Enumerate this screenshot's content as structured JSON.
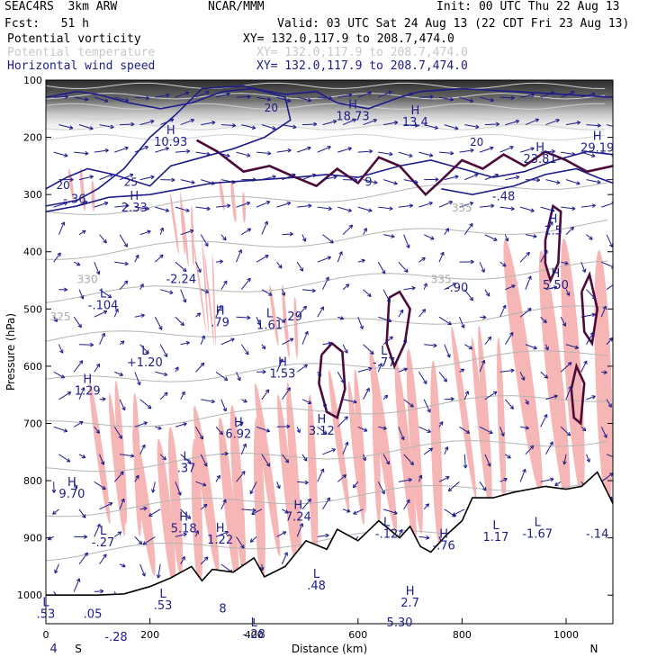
{
  "header": {
    "model": "SEAC4RS  3km ARW",
    "org": "NCAR/MMM",
    "init": "Init: 00 UTC Thu 22 Aug 13",
    "fcst": "Fcst:   51 h",
    "valid": "Valid: 03 UTC Sat 24 Aug 13 (22 CDT Fri 23 Aug 13)"
  },
  "fields": [
    {
      "name": "Potential vorticity",
      "xy": "XY= 132.0,117.9 to 208.7,474.0",
      "color": "#000000"
    },
    {
      "name": "Potential temperature",
      "xy": "XY= 132.0,117.9 to 208.7,474.0",
      "color": "#c8c8c8"
    },
    {
      "name": "Horizontal wind speed",
      "xy": "XY= 132.0,117.9 to 208.7,474.0",
      "color": "#1c1c8a"
    }
  ],
  "colors": {
    "wind": "#1c1c8a",
    "pv": "#4b0a3a",
    "theta": "#b4b4b4",
    "pv_fill": "#f7b6b6",
    "terrain": "#000000"
  },
  "chart_data": {
    "type": "cross-section",
    "xlabel": "Distance (km)",
    "ylabel": "Pressure (hPa)",
    "xlim": [
      0,
      1090
    ],
    "ylim": [
      1050,
      100
    ],
    "x_ticks": [
      "0",
      "200",
      "400",
      "600",
      "800",
      "1000"
    ],
    "y_ticks": [
      "100",
      "200",
      "300",
      "400",
      "500",
      "600",
      "700",
      "800",
      "900",
      "1000"
    ],
    "x_tick_values": [
      0,
      200,
      400,
      600,
      800,
      1000
    ],
    "y_tick_values": [
      100,
      200,
      300,
      400,
      500,
      600,
      700,
      800,
      900,
      1000
    ],
    "end_labels": {
      "left": "S",
      "right": "N"
    },
    "terrain_surface": [
      [
        0,
        1000
      ],
      [
        50,
        1000
      ],
      [
        100,
        1000
      ],
      [
        150,
        998
      ],
      [
        200,
        985
      ],
      [
        240,
        970
      ],
      [
        280,
        950
      ],
      [
        300,
        975
      ],
      [
        320,
        955
      ],
      [
        360,
        960
      ],
      [
        400,
        935
      ],
      [
        420,
        968
      ],
      [
        460,
        950
      ],
      [
        500,
        905
      ],
      [
        540,
        920
      ],
      [
        560,
        885
      ],
      [
        600,
        905
      ],
      [
        640,
        870
      ],
      [
        680,
        900
      ],
      [
        700,
        880
      ],
      [
        720,
        915
      ],
      [
        740,
        925
      ],
      [
        770,
        895
      ],
      [
        800,
        870
      ],
      [
        820,
        830
      ],
      [
        860,
        830
      ],
      [
        900,
        820
      ],
      [
        960,
        810
      ],
      [
        1000,
        815
      ],
      [
        1030,
        810
      ],
      [
        1060,
        785
      ],
      [
        1090,
        840
      ]
    ],
    "theta_contours": [
      {
        "label": "330",
        "x": 60,
        "p": 455
      },
      {
        "label": "325",
        "x": 8,
        "p": 520
      },
      {
        "label": "335",
        "x": 740,
        "p": 455
      },
      {
        "label": "335",
        "x": 780,
        "p": 330
      }
    ],
    "wind_contours": [
      {
        "label": "20",
        "x": 20,
        "p": 290
      },
      {
        "label": "25",
        "x": 150,
        "p": 285
      },
      {
        "label": "20",
        "x": 420,
        "p": 155
      },
      {
        "label": "20",
        "x": 815,
        "p": 215
      }
    ],
    "extrema": [
      {
        "type": "H",
        "value": "10.93",
        "x": 240,
        "p": 215
      },
      {
        "type": "H",
        "value": "18.73",
        "x": 590,
        "p": 170
      },
      {
        "type": "H",
        "value": "13.4",
        "x": 710,
        "p": 180
      },
      {
        "type": "H",
        "value": "23.81",
        "x": 950,
        "p": 245
      },
      {
        "type": "H",
        "value": "29.19",
        "x": 1060,
        "p": 225
      },
      {
        "type": "",
        "value": "-.36",
        "x": 55,
        "p": 315
      },
      {
        "type": "H",
        "value": "2.33",
        "x": 170,
        "p": 330
      },
      {
        "type": "",
        "value": "9",
        "x": 620,
        "p": 285
      },
      {
        "type": "",
        "value": "-.48",
        "x": 880,
        "p": 310
      },
      {
        "type": "",
        "value": "-2.24",
        "x": 260,
        "p": 455
      },
      {
        "type": "L",
        "value": "-.104",
        "x": 110,
        "p": 500
      },
      {
        "type": "H",
        "value": ".79",
        "x": 335,
        "p": 530
      },
      {
        "type": "L",
        "value": "1.61",
        "x": 430,
        "p": 535
      },
      {
        "type": "",
        "value": ".29",
        "x": 475,
        "p": 520
      },
      {
        "type": "",
        "value": "-.90",
        "x": 790,
        "p": 470
      },
      {
        "type": "H",
        "value": "1.5",
        "x": 975,
        "p": 370
      },
      {
        "type": "H",
        "value": "5.50",
        "x": 980,
        "p": 465
      },
      {
        "type": "L",
        "value": "+1.20",
        "x": 190,
        "p": 600
      },
      {
        "type": "H",
        "value": "1.53",
        "x": 455,
        "p": 620
      },
      {
        "type": "L",
        "value": "-.77",
        "x": 650,
        "p": 600
      },
      {
        "type": "H",
        "value": "1.29",
        "x": 80,
        "p": 650
      },
      {
        "type": "H",
        "value": "6.92",
        "x": 370,
        "p": 725
      },
      {
        "type": "H",
        "value": "3.12",
        "x": 530,
        "p": 720
      },
      {
        "type": "L",
        "value": ".37",
        "x": 270,
        "p": 785
      },
      {
        "type": "H",
        "value": "9.70",
        "x": 50,
        "p": 830
      },
      {
        "type": "H",
        "value": "7.24",
        "x": 485,
        "p": 870
      },
      {
        "type": "H",
        "value": "5.18",
        "x": 265,
        "p": 890
      },
      {
        "type": "L",
        "value": "-.27",
        "x": 110,
        "p": 915
      },
      {
        "type": "H",
        "value": "1.22",
        "x": 335,
        "p": 910
      },
      {
        "type": "L",
        "value": "-.12",
        "x": 655,
        "p": 900
      },
      {
        "type": "H",
        "value": "-.76",
        "x": 765,
        "p": 920
      },
      {
        "type": "L",
        "value": "1.17",
        "x": 865,
        "p": 905
      },
      {
        "type": "L",
        "value": "-1.67",
        "x": 945,
        "p": 900
      },
      {
        "type": "",
        "value": "-.14",
        "x": 1060,
        "p": 900
      },
      {
        "type": "L",
        "value": ".48",
        "x": 520,
        "p": 990
      },
      {
        "type": "L",
        "value": ".53",
        "x": 225,
        "p": 1025
      },
      {
        "type": "",
        "value": "8",
        "x": 340,
        "p": 1030
      },
      {
        "type": "H",
        "value": "2.7",
        "x": 700,
        "p": 1020
      },
      {
        "type": "",
        "value": "5.30",
        "x": 680,
        "p": 1055
      },
      {
        "type": "L",
        "value": "-.28",
        "x": 400,
        "p": 1075
      },
      {
        "type": "",
        "value": "-.28",
        "x": 135,
        "p": 1080
      },
      {
        "type": "L",
        "value": ".53",
        "x": 0,
        "p": 1040
      },
      {
        "type": "",
        "value": ".05",
        "x": 90,
        "p": 1040
      },
      {
        "type": "",
        "value": "4",
        "x": 15,
        "p": 1100
      }
    ],
    "pv_filled_regions": [
      {
        "x": [
          50,
          90
        ],
        "p": [
          260,
          320
        ]
      },
      {
        "x": [
          250,
          280
        ],
        "p": [
          300,
          420
        ]
      },
      {
        "x": [
          300,
          320
        ],
        "p": [
          380,
          560
        ]
      },
      {
        "x": [
          340,
          380
        ],
        "p": [
          280,
          340
        ]
      },
      {
        "x": [
          440,
          480
        ],
        "p": [
          460,
          580
        ]
      },
      {
        "x": [
          100,
          180
        ],
        "p": [
          620,
          900
        ]
      },
      {
        "x": [
          180,
          300
        ],
        "p": [
          700,
          990
        ]
      },
      {
        "x": [
          300,
          420
        ],
        "p": [
          660,
          990
        ]
      },
      {
        "x": [
          420,
          520
        ],
        "p": [
          620,
          960
        ]
      },
      {
        "x": [
          560,
          640
        ],
        "p": [
          600,
          880
        ]
      },
      {
        "x": [
          640,
          760
        ],
        "p": [
          560,
          920
        ]
      },
      {
        "x": [
          800,
          880
        ],
        "p": [
          520,
          860
        ]
      },
      {
        "x": [
          900,
          1090
        ],
        "p": [
          360,
          860
        ]
      }
    ],
    "pv_contours": [
      {
        "x": [
          290,
          820
        ],
        "p": [
          200,
          290
        ],
        "level": "upper tropopause"
      },
      {
        "x": [
          520,
          570
        ],
        "p": [
          560,
          690
        ],
        "level": "closed"
      },
      {
        "x": [
          660,
          720
        ],
        "p": [
          470,
          600
        ],
        "level": "closed"
      },
      {
        "x": [
          900,
          1090
        ],
        "p": [
          300,
          860
        ],
        "level": "closed"
      }
    ]
  }
}
